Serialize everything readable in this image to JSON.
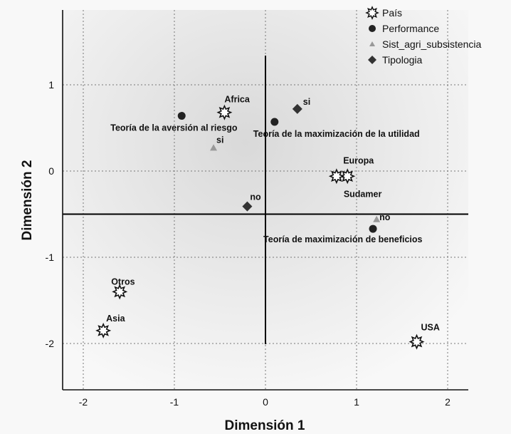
{
  "chart_data": {
    "type": "scatter",
    "xlabel": "Dimensión 1",
    "ylabel": "Dimensión 2",
    "xlim": [
      -2.25,
      2.25
    ],
    "ylim": [
      -2.55,
      1.85
    ],
    "x_ticks": [
      "-2",
      "-1",
      "0",
      "1",
      "2"
    ],
    "y_ticks": [
      "1",
      "0",
      "-1",
      "-2"
    ],
    "grid": true,
    "legend_position": "top-right",
    "reference_lines": {
      "x": 0,
      "y": -0.5
    },
    "colors": {
      "País": "#111111",
      "Performance": "#222222",
      "Sist_agri_subsistencia": "#999999",
      "Tipologia": "#333333"
    },
    "series": [
      {
        "name": "País",
        "marker": "star",
        "points": [
          {
            "label": "Africa",
            "x": -0.45,
            "y": 0.68
          },
          {
            "label": "Europa",
            "x": 0.9,
            "y": -0.06
          },
          {
            "label": "Sudamer",
            "x": 0.78,
            "y": -0.06
          },
          {
            "label": "Otros",
            "x": -1.6,
            "y": -1.4
          },
          {
            "label": "Asia",
            "x": -1.78,
            "y": -1.85
          },
          {
            "label": "USA",
            "x": 1.66,
            "y": -1.98
          }
        ]
      },
      {
        "name": "Performance",
        "marker": "circle",
        "points": [
          {
            "label": "Teoría de la aversión al riesgo",
            "x": -0.92,
            "y": 0.64
          },
          {
            "label": "Teoría de la maximización de la utilidad",
            "x": 0.1,
            "y": 0.57
          },
          {
            "label": "Teoría de maximización de beneficios",
            "x": 1.18,
            "y": -0.67
          }
        ]
      },
      {
        "name": "Sist_agri_subsistencia",
        "marker": "triangle",
        "points": [
          {
            "label": "si",
            "x": -0.57,
            "y": 0.27
          },
          {
            "label": "no",
            "x": 1.22,
            "y": -0.56
          }
        ]
      },
      {
        "name": "Tipologia",
        "marker": "diamond",
        "points": [
          {
            "label": "si",
            "x": 0.35,
            "y": 0.72
          },
          {
            "label": "no",
            "x": -0.2,
            "y": -0.41
          }
        ]
      }
    ]
  }
}
